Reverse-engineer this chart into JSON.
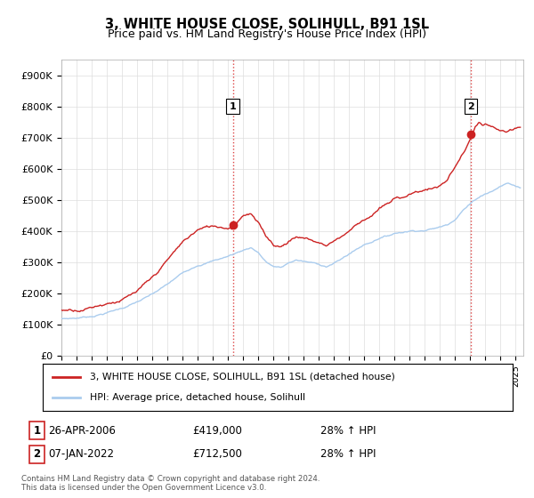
{
  "title": "3, WHITE HOUSE CLOSE, SOLIHULL, B91 1SL",
  "subtitle": "Price paid vs. HM Land Registry's House Price Index (HPI)",
  "ylabel": "",
  "ylim": [
    0,
    950000
  ],
  "yticks": [
    0,
    100000,
    200000,
    300000,
    400000,
    500000,
    600000,
    700000,
    800000,
    900000
  ],
  "ytick_labels": [
    "£0",
    "£100K",
    "£200K",
    "£300K",
    "£400K",
    "£500K",
    "£600K",
    "£700K",
    "£800K",
    "£900K"
  ],
  "hpi_color": "#aaccee",
  "price_color": "#cc2222",
  "marker_color": "#cc2222",
  "vline_color": "#dd4444",
  "grid_color": "#dddddd",
  "bg_color": "#ffffff",
  "legend_entries": [
    "3, WHITE HOUSE CLOSE, SOLIHULL, B91 1SL (detached house)",
    "HPI: Average price, detached house, Solihull"
  ],
  "sale1_label": "1",
  "sale1_date": "26-APR-2006",
  "sale1_price": "£419,000",
  "sale1_hpi": "28% ↑ HPI",
  "sale1_year": 2006.32,
  "sale1_value": 419000,
  "sale2_label": "2",
  "sale2_date": "07-JAN-2022",
  "sale2_price": "£712,500",
  "sale2_hpi": "28% ↑ HPI",
  "sale2_year": 2022.02,
  "sale2_value": 712500,
  "footnote": "Contains HM Land Registry data © Crown copyright and database right 2024.\nThis data is licensed under the Open Government Licence v3.0.",
  "xmin": 1995,
  "xmax": 2025.5
}
